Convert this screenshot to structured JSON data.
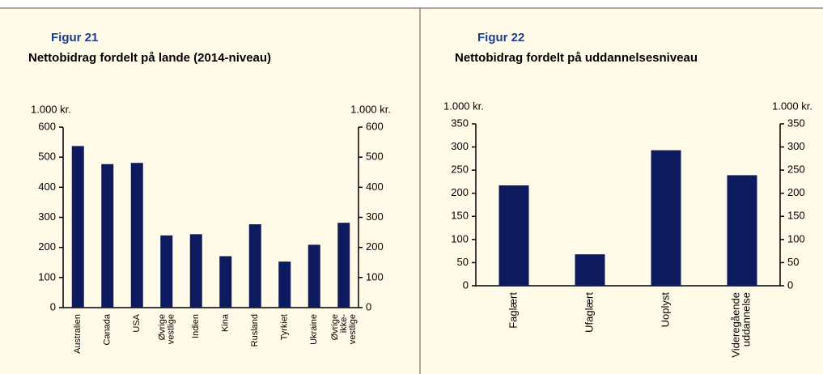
{
  "chart_data": [
    {
      "type": "bar",
      "title": "Figur 21",
      "subtitle": "Nettobidrag fordelt på lande (2014-niveau)",
      "ylabel": "1.000 kr.",
      "y2label": "1.000 kr.",
      "categories": [
        "Australien",
        "Canada",
        "USA",
        "Øvrige vestlige",
        "Indien",
        "Kina",
        "Rusland",
        "Tyrkiet",
        "Ukraine",
        "Øvrige ikke-vestlige"
      ],
      "values": [
        537,
        477,
        481,
        240,
        244,
        171,
        277,
        153,
        209,
        282
      ],
      "color": "#0e1a5e",
      "ylim": [
        0,
        600
      ],
      "yticks": [
        0,
        100,
        200,
        300,
        400,
        500,
        600
      ],
      "y2lim": [
        0,
        600
      ],
      "y2ticks": [
        0,
        100,
        200,
        300,
        400,
        500,
        600
      ]
    },
    {
      "type": "bar",
      "title": "Figur 22",
      "subtitle": "Nettobidrag fordelt på uddannelsesniveau",
      "ylabel": "1.000 kr.",
      "y2label": "1.000 kr.",
      "categories": [
        "Faglært",
        "Ufaglært",
        "Uoplyst",
        "Videregående uddannelse"
      ],
      "values": [
        217,
        68,
        293,
        239
      ],
      "color": "#0e1a5e",
      "ylim": [
        0,
        350
      ],
      "yticks": [
        0,
        50,
        100,
        150,
        200,
        250,
        300,
        350
      ],
      "y2lim": [
        0,
        350
      ],
      "y2ticks": [
        0,
        50,
        100,
        150,
        200,
        250,
        300,
        350
      ]
    }
  ]
}
